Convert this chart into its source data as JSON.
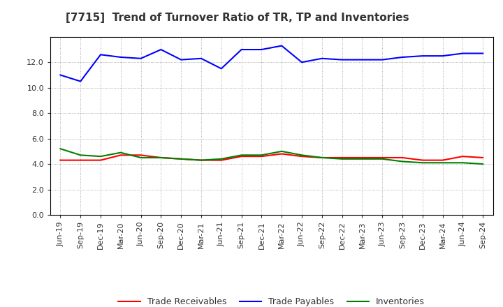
{
  "title": "[7715]  Trend of Turnover Ratio of TR, TP and Inventories",
  "labels": [
    "Jun-19",
    "Sep-19",
    "Dec-19",
    "Mar-20",
    "Jun-20",
    "Sep-20",
    "Dec-20",
    "Mar-21",
    "Jun-21",
    "Sep-21",
    "Dec-21",
    "Mar-22",
    "Jun-22",
    "Sep-22",
    "Dec-22",
    "Mar-23",
    "Jun-23",
    "Sep-23",
    "Dec-23",
    "Mar-24",
    "Jun-24",
    "Sep-24"
  ],
  "trade_receivables": [
    4.3,
    4.3,
    4.3,
    4.7,
    4.7,
    4.5,
    4.4,
    4.3,
    4.3,
    4.6,
    4.6,
    4.8,
    4.6,
    4.5,
    4.5,
    4.5,
    4.5,
    4.5,
    4.3,
    4.3,
    4.6,
    4.5
  ],
  "trade_payables": [
    11.0,
    10.5,
    12.6,
    12.4,
    12.3,
    13.0,
    12.2,
    12.3,
    11.5,
    13.0,
    13.0,
    13.3,
    12.0,
    12.3,
    12.2,
    12.2,
    12.2,
    12.4,
    12.5,
    12.5,
    12.7,
    12.7
  ],
  "inventories": [
    5.2,
    4.7,
    4.6,
    4.9,
    4.5,
    4.5,
    4.4,
    4.3,
    4.4,
    4.7,
    4.7,
    5.0,
    4.7,
    4.5,
    4.4,
    4.4,
    4.4,
    4.2,
    4.1,
    4.1,
    4.1,
    4.0
  ],
  "ylim": [
    0.0,
    14.0
  ],
  "yticks": [
    0.0,
    2.0,
    4.0,
    6.0,
    8.0,
    10.0,
    12.0
  ],
  "line_color_tr": "#ff0000",
  "line_color_tp": "#0000ff",
  "line_color_inv": "#008000",
  "bg_color": "#ffffff",
  "grid_color": "#999999",
  "title_color": "#333333",
  "tick_color": "#333333",
  "legend_tr": "Trade Receivables",
  "legend_tp": "Trade Payables",
  "legend_inv": "Inventories",
  "title_fontsize": 11,
  "tick_fontsize": 8,
  "legend_fontsize": 9
}
